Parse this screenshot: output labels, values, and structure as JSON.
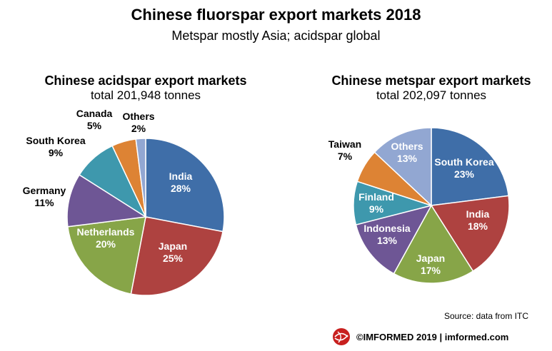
{
  "header": {
    "title": "Chinese fluorspar export markets 2018",
    "subtitle": "Metspar mostly Asia; acidspar global"
  },
  "chart_data": [
    {
      "type": "pie",
      "title": "Chinese acidspar export markets",
      "subtitle": "total 201,948 tonnes",
      "slices": [
        {
          "label": "India",
          "value": 28,
          "display": "28%",
          "color": "#3f6ea8"
        },
        {
          "label": "Japan",
          "value": 25,
          "display": "25%",
          "color": "#ae4240"
        },
        {
          "label": "Netherlands",
          "value": 20,
          "display": "20%",
          "color": "#87a548"
        },
        {
          "label": "Germany",
          "value": 11,
          "display": "11%",
          "color": "#6e5695"
        },
        {
          "label": "South Korea",
          "value": 9,
          "display": "9%",
          "color": "#3e98ad"
        },
        {
          "label": "Canada",
          "value": 5,
          "display": "5%",
          "color": "#dd8334"
        },
        {
          "label": "Others",
          "value": 2,
          "display": "2%",
          "color": "#92a7d2"
        }
      ]
    },
    {
      "type": "pie",
      "title": "Chinese metspar export markets",
      "subtitle": "total 202,097 tonnes",
      "slices": [
        {
          "label": "South Korea",
          "value": 23,
          "display": "23%",
          "color": "#3f6ea8"
        },
        {
          "label": "India",
          "value": 18,
          "display": "18%",
          "color": "#ae4240"
        },
        {
          "label": "Japan",
          "value": 17,
          "display": "17%",
          "color": "#87a548"
        },
        {
          "label": "Indonesia",
          "value": 13,
          "display": "13%",
          "color": "#6e5695"
        },
        {
          "label": "Finland",
          "value": 9,
          "display": "9%",
          "color": "#3e98ad"
        },
        {
          "label": "Taiwan",
          "value": 7,
          "display": "7%",
          "color": "#dd8334"
        },
        {
          "label": "Others",
          "value": 13,
          "display": "13%",
          "color": "#92a7d2"
        }
      ]
    }
  ],
  "footer": {
    "source": "Source: data from ITC",
    "brand": "©IMFORMED  2019  | imformed.com",
    "logo_colors": [
      "#c8201f",
      "#ffffff"
    ]
  }
}
